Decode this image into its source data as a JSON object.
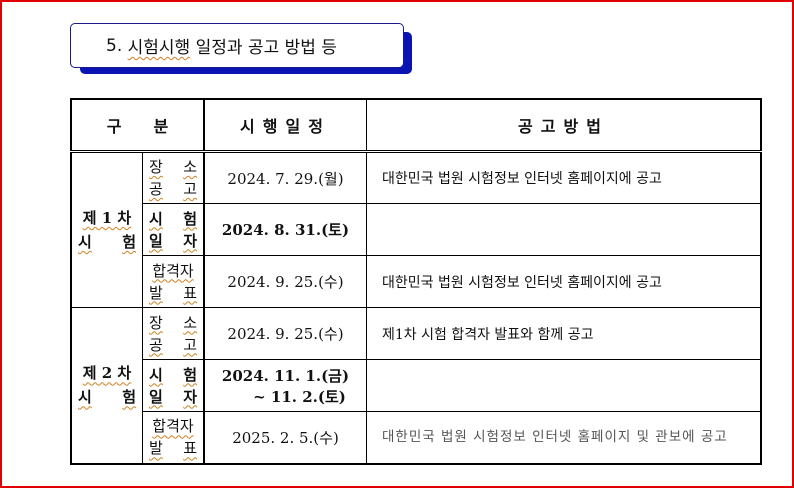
{
  "title": {
    "number": "5.",
    "text_underlined": "시험시행",
    "text_rest": "일정과 공고 방법 등"
  },
  "table": {
    "headers": {
      "category": "구　　분",
      "schedule": "시행일정",
      "method": "공고방법"
    },
    "groups": [
      {
        "label_line1": "제 1 차",
        "label_line2": [
          "시",
          "험"
        ],
        "rows": [
          {
            "sub": [
              [
                "장",
                "소"
              ],
              [
                "공",
                "고"
              ]
            ],
            "date": "2024. 7. 29.(월)",
            "announce": "대한민국 법원 시험정보 인터넷 홈페이지에 공고"
          },
          {
            "sub": [
              [
                "시",
                "험"
              ],
              [
                "일",
                "자"
              ]
            ],
            "date": "2024. 8. 31.(토)",
            "announce": ""
          },
          {
            "sub": [
              [
                "합격자"
              ],
              [
                "발",
                "표"
              ]
            ],
            "date": "2024. 9. 25.(수)",
            "announce": "대한민국 법원 시험정보 인터넷 홈페이지에 공고"
          }
        ]
      },
      {
        "label_line1": "제 2 차",
        "label_line2": [
          "시",
          "험"
        ],
        "rows": [
          {
            "sub": [
              [
                "장",
                "소"
              ],
              [
                "공",
                "고"
              ]
            ],
            "date": "2024. 9. 25.(수)",
            "announce": "제1차 시험 합격자 발표와 함께 공고"
          },
          {
            "sub": [
              [
                "시",
                "험"
              ],
              [
                "일",
                "자"
              ]
            ],
            "date": "2024. 11. 1.(금)",
            "date2": "~ 11. 2.(토)",
            "announce": ""
          },
          {
            "sub": [
              [
                "합격자"
              ],
              [
                "발",
                "표"
              ]
            ],
            "date": "2025. 2. 5.(수)",
            "announce": "대한민국 법원 시험정보 인터넷 홈페이지 및 관보에 공고"
          }
        ]
      }
    ]
  },
  "colors": {
    "border": "#e00000",
    "title_shadow": "#0a14b4"
  }
}
